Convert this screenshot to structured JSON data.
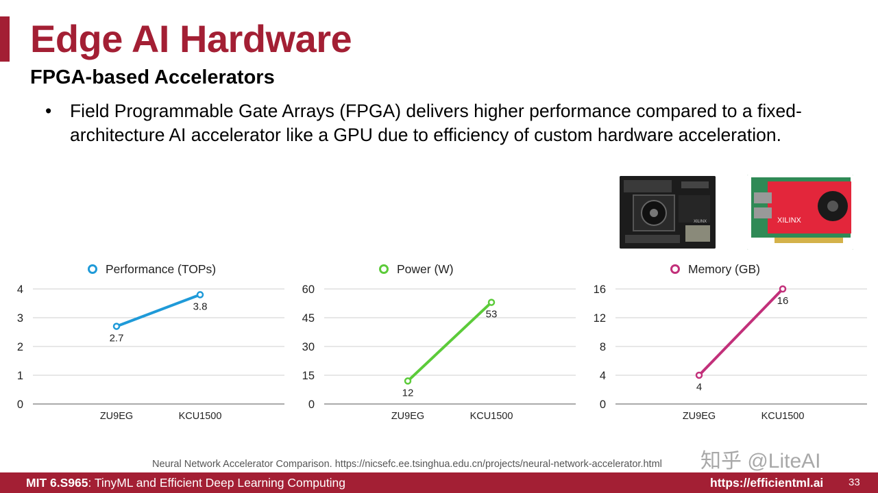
{
  "slide": {
    "title": "Edge AI Hardware",
    "subtitle": "FPGA-based Accelerators",
    "bullet_symbol": "•",
    "bullet": "Field Programmable Gate Arrays (FPGA) delivers higher performance compared to a fixed-architecture AI accelerator like a GPU due to efficiency of custom hardware acceleration.",
    "source": "Neural Network Accelerator Comparison. https://nicsefc.ee.tsinghua.edu.cn/projects/neural-network-accelerator.html",
    "watermark": "知乎 @LiteAI",
    "board_label": "XILINX"
  },
  "footer": {
    "course_code": "MIT 6.S965",
    "course_name": ": TinyML and Efficient Deep Learning Computing",
    "url": "https://efficientml.ai",
    "page": "33"
  },
  "colors": {
    "accent": "#a31f34",
    "performance": "#1f9ad8",
    "power": "#5ccb3a",
    "memory": "#c2307a"
  },
  "chart_data": [
    {
      "type": "line",
      "categories": [
        "ZU9EG",
        "KCU1500"
      ],
      "series": [
        {
          "name": "Performance (TOPs)",
          "values": [
            2.7,
            3.8
          ]
        }
      ],
      "yticks": [
        "0",
        "1",
        "2",
        "3",
        "4"
      ],
      "ylim": [
        0,
        4
      ],
      "grid": true,
      "legend": "top"
    },
    {
      "type": "line",
      "categories": [
        "ZU9EG",
        "KCU1500"
      ],
      "series": [
        {
          "name": "Power (W)",
          "values": [
            12,
            53
          ]
        }
      ],
      "yticks": [
        "0",
        "15",
        "30",
        "45",
        "60"
      ],
      "ylim": [
        0,
        60
      ],
      "grid": true,
      "legend": "top"
    },
    {
      "type": "line",
      "categories": [
        "ZU9EG",
        "KCU1500"
      ],
      "series": [
        {
          "name": "Memory (GB)",
          "values": [
            4,
            16
          ]
        }
      ],
      "yticks": [
        "0",
        "4",
        "8",
        "12",
        "16"
      ],
      "ylim": [
        0,
        16
      ],
      "grid": true,
      "legend": "top"
    }
  ]
}
